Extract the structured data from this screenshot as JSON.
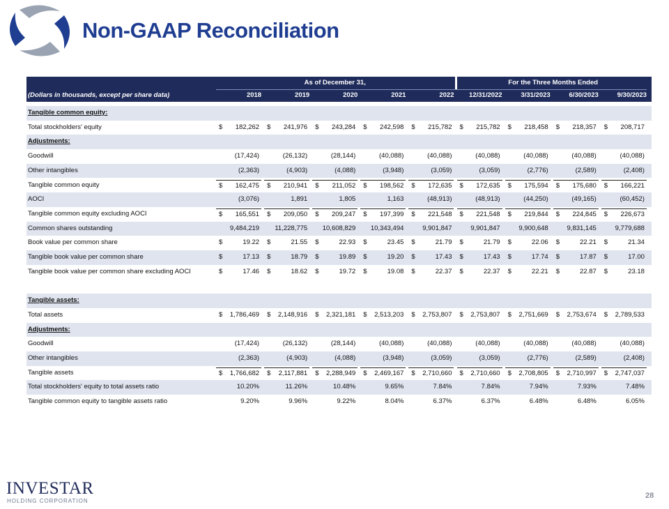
{
  "header": {
    "title": "Non-GAAP Reconciliation"
  },
  "table": {
    "group_headers": [
      "As of December 31,",
      "For the Three Months Ended"
    ],
    "units_label": "(Dollars in thousands, except per share data)",
    "columns": [
      "2018",
      "2019",
      "2020",
      "2021",
      "2022",
      "12/31/2022",
      "3/31/2023",
      "6/30/2023",
      "9/30/2023"
    ],
    "rows": [
      {
        "label": "Tangible common equity:"
      },
      {
        "label": "Total stockholders' equity",
        "currency": "$",
        "cells": [
          "182,262",
          "241,976",
          "243,284",
          "242,598",
          "215,782",
          "215,782",
          "218,458",
          "218,357",
          "208,717"
        ]
      },
      {
        "label": "Adjustments:"
      },
      {
        "label": "Goodwill",
        "cells": [
          "(17,424)",
          "(26,132)",
          "(28,144)",
          "(40,088)",
          "(40,088)",
          "(40,088)",
          "(40,088)",
          "(40,088)",
          "(40,088)"
        ]
      },
      {
        "label": "Other intangibles",
        "cells": [
          "(2,363)",
          "(4,903)",
          "(4,088)",
          "(3,948)",
          "(3,059)",
          "(3,059)",
          "(2,776)",
          "(2,589)",
          "(2,408)"
        ]
      },
      {
        "label": "Tangible common equity",
        "currency": "$",
        "cells": [
          "162,475",
          "210,941",
          "211,052",
          "198,562",
          "172,635",
          "172,635",
          "175,594",
          "175,680",
          "166,221"
        ]
      },
      {
        "label": "AOCI",
        "cells": [
          "(3,076)",
          "1,891",
          "1,805",
          "1,163",
          "(48,913)",
          "(48,913)",
          "(44,250)",
          "(49,165)",
          "(60,452)"
        ]
      },
      {
        "label": "Tangible common equity excluding AOCI",
        "currency": "$",
        "cells": [
          "165,551",
          "209,050",
          "209,247",
          "197,399",
          "221,548",
          "221,548",
          "219,844",
          "224,845",
          "226,673"
        ]
      },
      {
        "label": "Common shares outstanding",
        "cells": [
          "9,484,219",
          "11,228,775",
          "10,608,829",
          "10,343,494",
          "9,901,847",
          "9,901,847",
          "9,900,648",
          "9,831,145",
          "9,779,688"
        ]
      },
      {
        "label": "Book value per common share",
        "currency": "$",
        "cells": [
          "19.22",
          "21.55",
          "22.93",
          "23.45",
          "21.79",
          "21.79",
          "22.06",
          "22.21",
          "21.34"
        ]
      },
      {
        "label": "Tangible book value per common share",
        "currency": "$",
        "cells": [
          "17.13",
          "18.79",
          "19.89",
          "19.20",
          "17.43",
          "17.43",
          "17.74",
          "17.87",
          "17.00"
        ]
      },
      {
        "label": "Tangible book value per common share excluding AOCI",
        "currency": "$",
        "cells": [
          "17.46",
          "18.62",
          "19.72",
          "19.08",
          "22.37",
          "22.37",
          "22.21",
          "22.87",
          "23.18"
        ]
      },
      {
        "label": "Tangible assets:"
      },
      {
        "label": "Total assets",
        "currency": "$",
        "cells": [
          "1,786,469",
          "2,148,916",
          "2,321,181",
          "2,513,203",
          "2,753,807",
          "2,753,807",
          "2,751,669",
          "2,753,674",
          "2,789,533"
        ]
      },
      {
        "label": "Adjustments:"
      },
      {
        "label": "Goodwill",
        "cells": [
          "(17,424)",
          "(26,132)",
          "(28,144)",
          "(40,088)",
          "(40,088)",
          "(40,088)",
          "(40,088)",
          "(40,088)",
          "(40,088)"
        ]
      },
      {
        "label": "Other intangibles",
        "cells": [
          "(2,363)",
          "(4,903)",
          "(4,088)",
          "(3,948)",
          "(3,059)",
          "(3,059)",
          "(2,776)",
          "(2,589)",
          "(2,408)"
        ]
      },
      {
        "label": "Tangible assets",
        "currency": "$",
        "cells": [
          "1,766,682",
          "2,117,881",
          "2,288,949",
          "2,469,167",
          "2,710,660",
          "2,710,660",
          "2,708,805",
          "2,710,997",
          "2,747,037"
        ]
      },
      {
        "label": "Total stockholders' equity to total assets ratio",
        "cells": [
          "10.20%",
          "11.26%",
          "10.48%",
          "9.65%",
          "7.84%",
          "7.84%",
          "7.94%",
          "7.93%",
          "7.48%"
        ]
      },
      {
        "label": "Tangible common equity to tangible assets ratio",
        "cells": [
          "9.20%",
          "9.96%",
          "9.22%",
          "8.04%",
          "6.37%",
          "6.37%",
          "6.48%",
          "6.48%",
          "6.05%"
        ]
      }
    ]
  },
  "footer": {
    "logo": "INVESTAR",
    "logo_sub": "HOLDING CORPORATION",
    "page": "28"
  }
}
